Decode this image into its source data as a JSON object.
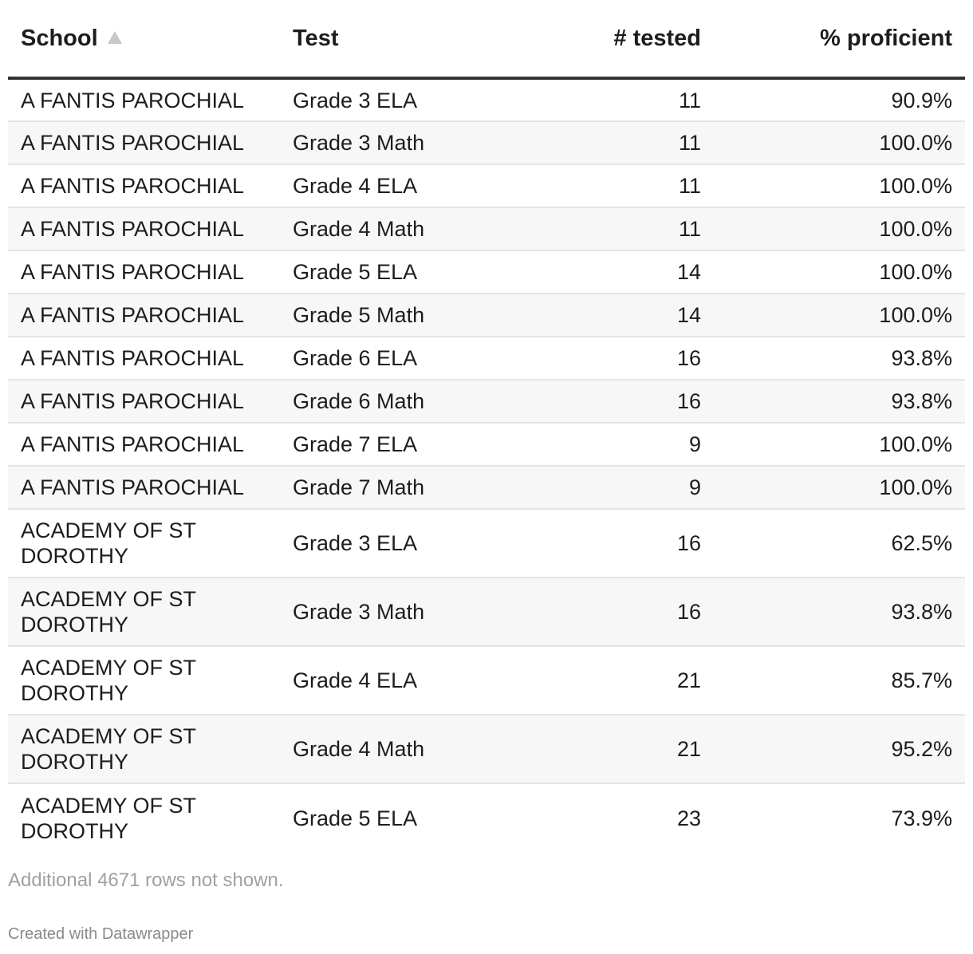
{
  "chart_data": {
    "type": "table",
    "columns": [
      {
        "label": "School",
        "align": "left",
        "sorted": "ascending"
      },
      {
        "label": "Test",
        "align": "left"
      },
      {
        "label": "# tested",
        "align": "right"
      },
      {
        "label": "% proficient",
        "align": "right"
      }
    ],
    "rows": [
      {
        "school": "A FANTIS PAROCHIAL",
        "test": "Grade 3 ELA",
        "tested": "11",
        "proficient": "90.9%"
      },
      {
        "school": "A FANTIS PAROCHIAL",
        "test": "Grade 3 Math",
        "tested": "11",
        "proficient": "100.0%"
      },
      {
        "school": "A FANTIS PAROCHIAL",
        "test": "Grade 4 ELA",
        "tested": "11",
        "proficient": "100.0%"
      },
      {
        "school": "A FANTIS PAROCHIAL",
        "test": "Grade 4 Math",
        "tested": "11",
        "proficient": "100.0%"
      },
      {
        "school": "A FANTIS PAROCHIAL",
        "test": "Grade 5 ELA",
        "tested": "14",
        "proficient": "100.0%"
      },
      {
        "school": "A FANTIS PAROCHIAL",
        "test": "Grade 5 Math",
        "tested": "14",
        "proficient": "100.0%"
      },
      {
        "school": "A FANTIS PAROCHIAL",
        "test": "Grade 6 ELA",
        "tested": "16",
        "proficient": "93.8%"
      },
      {
        "school": "A FANTIS PAROCHIAL",
        "test": "Grade 6 Math",
        "tested": "16",
        "proficient": "93.8%"
      },
      {
        "school": "A FANTIS PAROCHIAL",
        "test": "Grade 7 ELA",
        "tested": "9",
        "proficient": "100.0%"
      },
      {
        "school": "A FANTIS PAROCHIAL",
        "test": "Grade 7 Math",
        "tested": "9",
        "proficient": "100.0%"
      },
      {
        "school": "ACADEMY OF ST DOROTHY",
        "test": "Grade 3 ELA",
        "tested": "16",
        "proficient": "62.5%"
      },
      {
        "school": "ACADEMY OF ST DOROTHY",
        "test": "Grade 3 Math",
        "tested": "16",
        "proficient": "93.8%"
      },
      {
        "school": "ACADEMY OF ST DOROTHY",
        "test": "Grade 4 ELA",
        "tested": "21",
        "proficient": "85.7%"
      },
      {
        "school": "ACADEMY OF ST DOROTHY",
        "test": "Grade 4 Math",
        "tested": "21",
        "proficient": "95.2%"
      },
      {
        "school": "ACADEMY OF ST DOROTHY",
        "test": "Grade 5 ELA",
        "tested": "23",
        "proficient": "73.9%"
      }
    ],
    "note": "Additional 4671 rows not shown.",
    "credit": "Created with Datawrapper"
  },
  "colors": {
    "header_rule": "#333333",
    "row_stripe": "#f7f7f7",
    "row_divider": "#e4e4e4",
    "note_text": "#a0a0a0"
  },
  "icons": {
    "sort": "sort-ascending-icon"
  }
}
